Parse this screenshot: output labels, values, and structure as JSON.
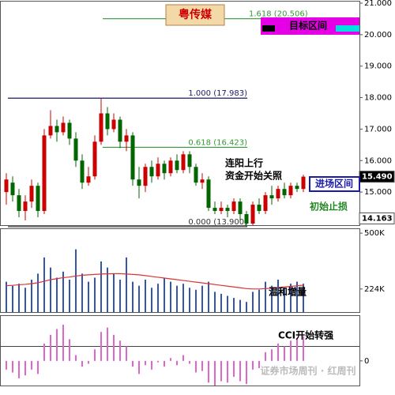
{
  "chart_data": [
    {
      "type": "candlestick",
      "title": "粤传媒",
      "ylim": [
        13.95,
        21.05
      ],
      "yticks": [
        {
          "value": 21,
          "label": "21.000"
        },
        {
          "value": 20,
          "label": "20.000"
        },
        {
          "value": 19,
          "label": "19.000"
        },
        {
          "value": 18,
          "label": "18.000"
        },
        {
          "value": 17,
          "label": "17.000"
        },
        {
          "value": 16,
          "label": "16.000"
        },
        {
          "value": 15,
          "label": "15.000"
        }
      ],
      "price_tags": [
        {
          "value": 15.49,
          "label": "15.490"
        },
        {
          "value": 14.163,
          "label": "14.163"
        }
      ],
      "up_color": "#cc0000",
      "down_color": "#006600",
      "open": [
        15.0,
        15.3,
        14.9,
        14.4,
        14.7,
        15.2,
        14.4,
        16.8,
        17.1,
        16.9,
        17.2,
        16.7,
        16.0,
        15.3,
        15.5,
        16.6,
        17.5,
        17.0,
        17.3,
        16.6,
        16.8,
        15.4,
        15.2,
        15.8,
        15.5,
        15.9,
        15.6,
        16.0,
        15.7,
        16.2,
        15.8,
        15.3,
        15.4,
        14.5,
        14.4,
        14.5,
        14.4,
        14.7,
        14.3,
        14.0,
        14.6,
        14.4,
        14.9,
        14.8,
        15.1,
        14.9,
        15.2,
        15.1
      ],
      "high": [
        15.6,
        15.5,
        15.1,
        14.9,
        15.4,
        15.3,
        17.0,
        17.6,
        17.3,
        17.4,
        17.3,
        16.9,
        16.2,
        15.8,
        16.8,
        17.98,
        17.7,
        17.5,
        17.4,
        17.0,
        16.9,
        15.8,
        15.9,
        16.0,
        16.1,
        16.0,
        16.1,
        16.2,
        16.3,
        16.3,
        15.9,
        15.6,
        15.5,
        14.7,
        14.7,
        14.6,
        14.8,
        14.8,
        14.4,
        14.7,
        14.8,
        15.0,
        15.2,
        15.2,
        15.3,
        15.3,
        15.3,
        15.55
      ],
      "low": [
        14.6,
        14.7,
        14.2,
        14.1,
        14.5,
        14.2,
        14.3,
        16.7,
        16.6,
        16.8,
        16.5,
        15.8,
        15.1,
        15.2,
        15.4,
        16.5,
        16.8,
        16.9,
        16.4,
        16.3,
        15.2,
        14.8,
        15.0,
        15.3,
        15.4,
        15.4,
        15.5,
        15.6,
        15.6,
        15.6,
        15.2,
        15.1,
        14.4,
        14.3,
        14.3,
        14.2,
        14.3,
        14.1,
        13.9,
        13.95,
        14.3,
        14.3,
        14.6,
        14.7,
        14.8,
        14.8,
        15.0,
        15.0
      ],
      "close": [
        15.4,
        14.9,
        14.4,
        14.7,
        15.2,
        14.4,
        16.8,
        17.1,
        16.9,
        17.2,
        16.7,
        16.0,
        15.3,
        15.5,
        16.6,
        17.5,
        17.0,
        17.3,
        16.6,
        16.8,
        15.4,
        15.2,
        15.8,
        15.5,
        15.9,
        15.6,
        16.0,
        15.7,
        16.2,
        15.8,
        15.3,
        15.4,
        14.5,
        14.4,
        14.5,
        14.4,
        14.7,
        14.3,
        14.0,
        14.6,
        14.4,
        14.9,
        14.8,
        15.1,
        14.9,
        15.2,
        15.1,
        15.49
      ],
      "fib_lines": [
        {
          "label": "1.618 (20.506)",
          "value": 20.506,
          "color": "#339933"
        },
        {
          "label": "1.000 (17.983)",
          "value": 17.983,
          "color": "#1a1a66"
        },
        {
          "label": "0.618 (16.423)",
          "value": 16.423,
          "color": "#339933"
        },
        {
          "label": "0.000 (13.900)",
          "value": 13.9,
          "color": "#333333"
        }
      ],
      "annotations": [
        "目标区间",
        "连阳上行",
        "资金开始关照",
        "进场区间",
        "初始止损"
      ]
    },
    {
      "type": "bar",
      "ylim": [
        110000,
        520000
      ],
      "yticks": [
        {
          "value": 500000,
          "label": "500K"
        },
        {
          "value": 224000,
          "label": "224K"
        }
      ],
      "series": [
        {
          "name": "VOL",
          "color": "#3355aa",
          "values": [
            260000,
            240000,
            250000,
            230000,
            270000,
            300000,
            380000,
            330000,
            280000,
            310000,
            270000,
            420000,
            300000,
            260000,
            280000,
            360000,
            330000,
            300000,
            270000,
            380000,
            260000,
            240000,
            270000,
            230000,
            250000,
            280000,
            260000,
            240000,
            250000,
            230000,
            220000,
            240000,
            260000,
            210000,
            200000,
            190000,
            180000,
            170000,
            160000,
            210000,
            220000,
            260000,
            240000,
            270000,
            230000,
            250000,
            260000,
            250000
          ]
        },
        {
          "name": "MA",
          "color": "#dd3333",
          "values": [
            240000,
            242000,
            245000,
            247000,
            250000,
            255000,
            262000,
            270000,
            275000,
            280000,
            283000,
            288000,
            292000,
            294000,
            296000,
            298000,
            299000,
            300000,
            300000,
            298000,
            296000,
            294000,
            290000,
            286000,
            282000,
            278000,
            274000,
            270000,
            266000,
            262000,
            258000,
            254000,
            250000,
            246000,
            242000,
            238000,
            234000,
            230000,
            226000,
            224000,
            224000,
            226000,
            228000,
            231000,
            234000,
            237000,
            240000,
            243000
          ]
        }
      ],
      "annotation": "温和增量"
    },
    {
      "type": "bar",
      "ylim": [
        -170,
        310
      ],
      "yticks": [
        0
      ],
      "ref_lines": [
        100
      ],
      "color": "#e066cc",
      "values": [
        -60,
        -80,
        -120,
        -100,
        -60,
        -90,
        120,
        180,
        220,
        250,
        150,
        40,
        -40,
        -20,
        80,
        200,
        230,
        180,
        140,
        100,
        -40,
        -90,
        -30,
        -60,
        -10,
        -40,
        20,
        -30,
        40,
        -20,
        -80,
        -70,
        -150,
        -170,
        -140,
        -150,
        -110,
        -140,
        -160,
        -60,
        -50,
        60,
        80,
        120,
        100,
        140,
        150,
        170
      ],
      "annotation": "CCI开始转强",
      "watermark": "证券市场周刊 · 红周刊"
    }
  ]
}
